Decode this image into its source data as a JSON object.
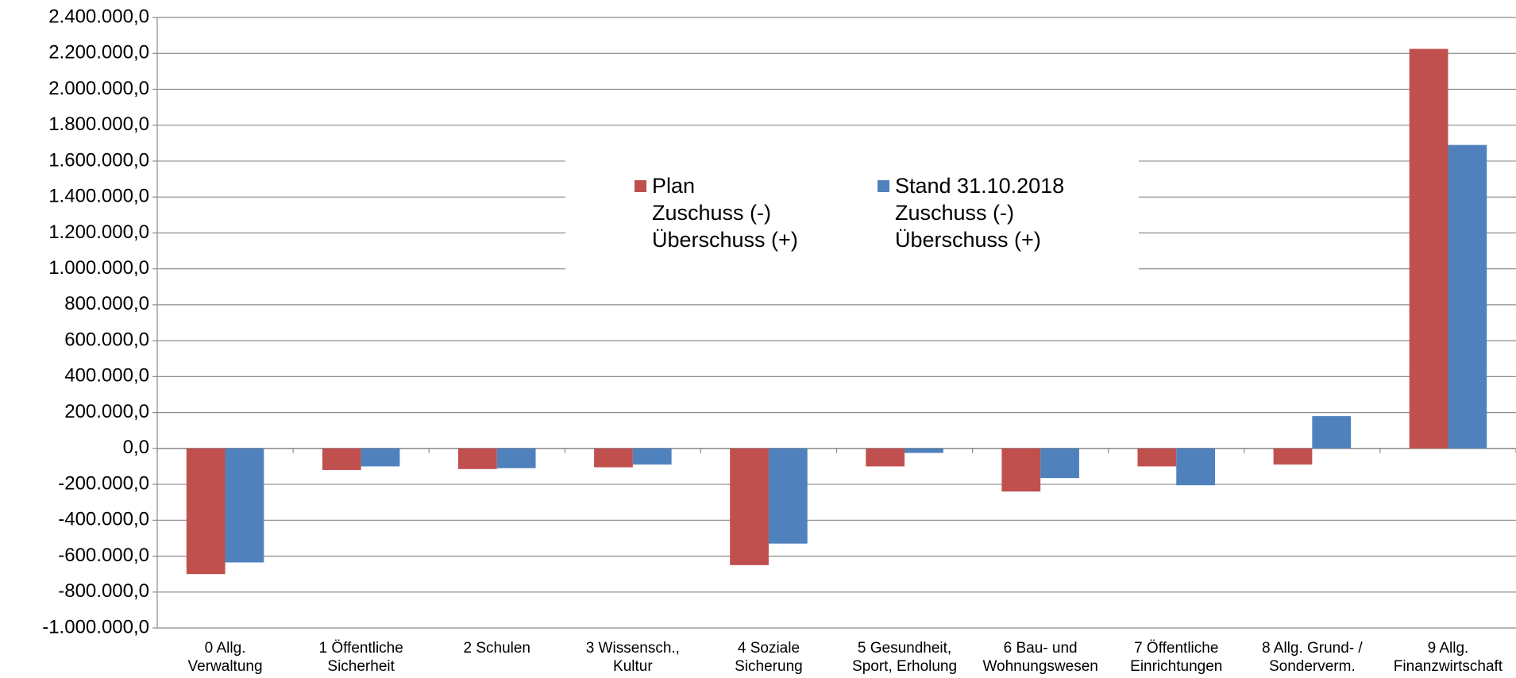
{
  "chart_data": {
    "type": "bar",
    "categories": [
      [
        "0 Allg.",
        "Verwaltung"
      ],
      [
        "1 Öffentliche",
        "Sicherheit"
      ],
      [
        "2 Schulen"
      ],
      [
        "3 Wissensch.,",
        "Kultur"
      ],
      [
        "4 Soziale",
        "Sicherung"
      ],
      [
        "5 Gesundheit,",
        "Sport, Erholung"
      ],
      [
        "6 Bau- und",
        "Wohnungswesen"
      ],
      [
        "7 Öffentliche",
        "Einrichtungen"
      ],
      [
        "8 Allg. Grund- /",
        "Sonderverm."
      ],
      [
        "9 Allg.",
        "Finanzwirtschaft"
      ]
    ],
    "series": [
      {
        "name": [
          "Plan",
          "Zuschuss (-)",
          "Überschuss (+)"
        ],
        "color": "#c0504d",
        "values": [
          -700000,
          -120000,
          -115000,
          -105000,
          -650000,
          -100000,
          -240000,
          -100000,
          -90000,
          2225000
        ]
      },
      {
        "name": [
          "Stand 31.10.2018",
          "Zuschuss (-)",
          "Überschuss (+)"
        ],
        "color": "#4f81bd",
        "values": [
          -635000,
          -100000,
          -110000,
          -90000,
          -530000,
          -25000,
          -165000,
          -205000,
          180000,
          1690000
        ]
      }
    ],
    "ylim": [
      -1000000,
      2400000
    ],
    "yticks": [
      {
        "value": -1000000,
        "label": "-1.000.000,0"
      },
      {
        "value": -800000,
        "label": "-800.000,0"
      },
      {
        "value": -600000,
        "label": "-600.000,0"
      },
      {
        "value": -400000,
        "label": "-400.000,0"
      },
      {
        "value": -200000,
        "label": "-200.000,0"
      },
      {
        "value": 0,
        "label": "0,0"
      },
      {
        "value": 200000,
        "label": "200.000,0"
      },
      {
        "value": 400000,
        "label": "400.000,0"
      },
      {
        "value": 600000,
        "label": "600.000,0"
      },
      {
        "value": 800000,
        "label": "800.000,0"
      },
      {
        "value": 1000000,
        "label": "1.000.000,0"
      },
      {
        "value": 1200000,
        "label": "1.200.000,0"
      },
      {
        "value": 1400000,
        "label": "1.400.000,0"
      },
      {
        "value": 1600000,
        "label": "1.600.000,0"
      },
      {
        "value": 1800000,
        "label": "1.800.000,0"
      },
      {
        "value": 2000000,
        "label": "2.000.000,0"
      },
      {
        "value": 2200000,
        "label": "2.200.000,0"
      },
      {
        "value": 2400000,
        "label": "2.400.000,0"
      }
    ],
    "grid": true,
    "legend": "top"
  }
}
